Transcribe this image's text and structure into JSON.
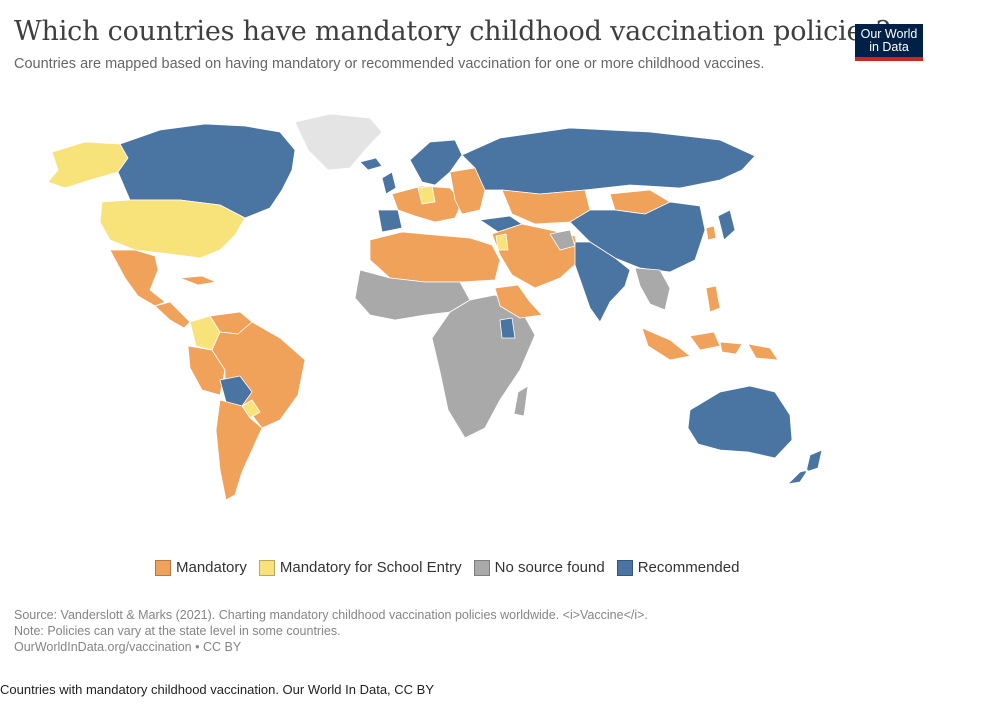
{
  "header": {
    "title": "Which countries have mandatory childhood vaccination policies?",
    "subtitle": "Countries are mapped based on having mandatory or recommended vaccination for one or more childhood vaccines."
  },
  "logo": {
    "line1": "Our World",
    "line2": "in Data"
  },
  "colors": {
    "mandatory": "#f0a15a",
    "mandatory_school": "#f8e27a",
    "no_source": "#a9a9a9",
    "recommended": "#4a74a1",
    "no_data": "#e4e4e4",
    "logo_bg": "#002147",
    "logo_accent": "#ce261e"
  },
  "legend": [
    {
      "label": "Mandatory",
      "color": "#f0a15a"
    },
    {
      "label": "Mandatory for School Entry",
      "color": "#f8e27a"
    },
    {
      "label": "No source found",
      "color": "#a9a9a9"
    },
    {
      "label": "Recommended",
      "color": "#4a74a1"
    }
  ],
  "map_regions": [
    {
      "name": "Canada",
      "category": "Recommended"
    },
    {
      "name": "United States",
      "category": "Mandatory for School Entry"
    },
    {
      "name": "Mexico",
      "category": "Mandatory"
    },
    {
      "name": "Brazil",
      "category": "Mandatory"
    },
    {
      "name": "Colombia",
      "category": "Mandatory for School Entry"
    },
    {
      "name": "Bolivia",
      "category": "Recommended"
    },
    {
      "name": "Argentina",
      "category": "Mandatory"
    },
    {
      "name": "Western Europe",
      "category": "Mandatory"
    },
    {
      "name": "Russia",
      "category": "Recommended"
    },
    {
      "name": "China",
      "category": "Recommended"
    },
    {
      "name": "Mongolia",
      "category": "Mandatory"
    },
    {
      "name": "India",
      "category": "Recommended"
    },
    {
      "name": "Middle East",
      "category": "Mandatory"
    },
    {
      "name": "North Africa",
      "category": "Mandatory"
    },
    {
      "name": "Sub-Saharan Africa",
      "category": "No source found"
    },
    {
      "name": "Southeast Asia",
      "category": "Mandatory"
    },
    {
      "name": "Australia",
      "category": "Recommended"
    },
    {
      "name": "New Zealand",
      "category": "Recommended"
    },
    {
      "name": "Greenland",
      "category": "No data"
    }
  ],
  "footer": {
    "source": "Source: Vanderslott & Marks (2021). Charting mandatory childhood vaccination policies worldwide. <i>Vaccine</i>.",
    "note": "Note: Policies can vary at the state level in some countries.",
    "url": "OurWorldInData.org/vaccination • CC BY"
  },
  "caption": "Countries with mandatory childhood vaccination. Our World In Data, CC BY"
}
